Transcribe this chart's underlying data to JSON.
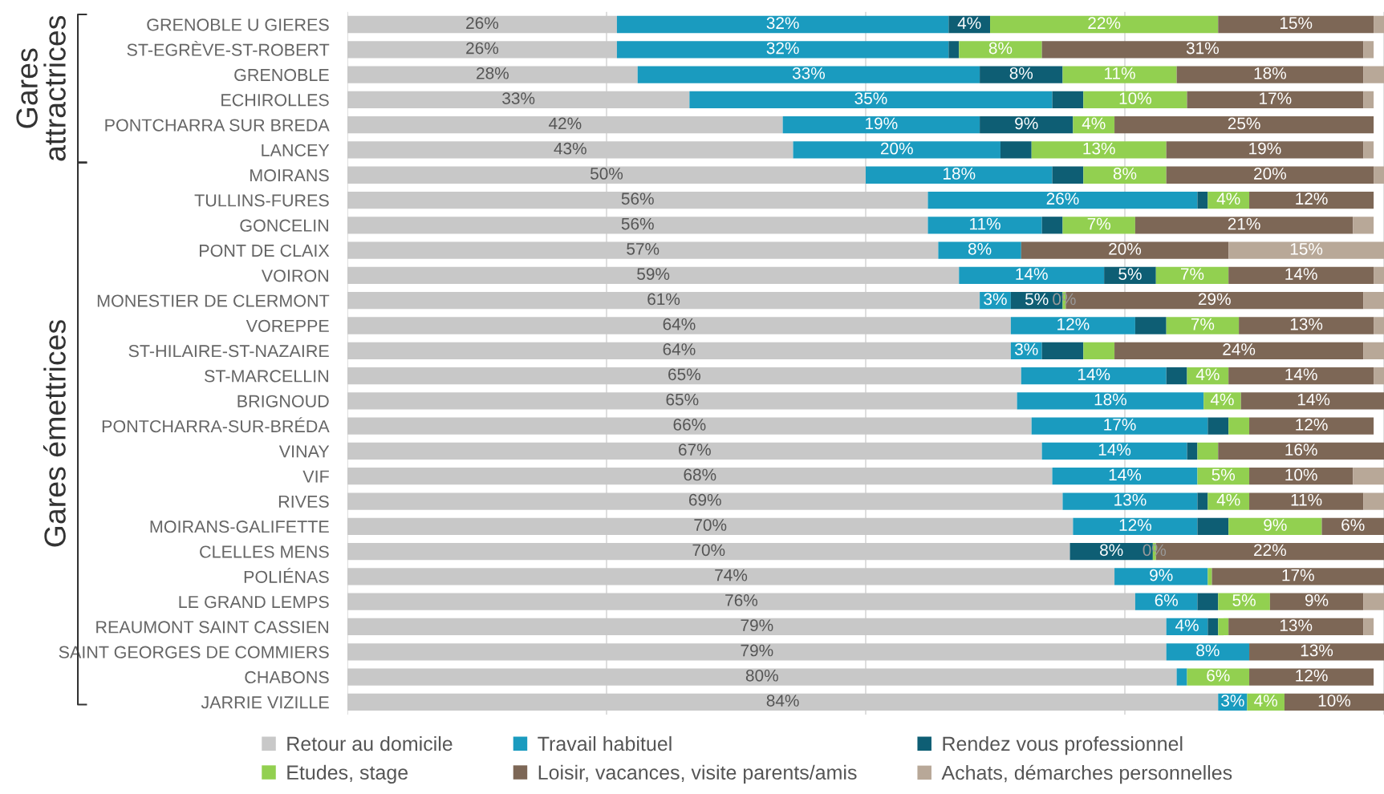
{
  "chart_data": {
    "type": "bar",
    "orientation": "horizontal",
    "stacked": true,
    "categories": [
      "GRENOBLE U GIERES",
      "ST-EGRÈVE-ST-ROBERT",
      "GRENOBLE",
      "ECHIROLLES",
      "PONTCHARRA SUR BREDA",
      "LANCEY",
      "MOIRANS",
      "TULLINS-FURES",
      "GONCELIN",
      "PONT DE CLAIX",
      "VOIRON",
      "MONESTIER DE CLERMONT",
      "VOREPPE",
      "ST-HILAIRE-ST-NAZAIRE",
      "ST-MARCELLIN",
      "BRIGNOUD",
      "PONTCHARRA-SUR-BRÉDA",
      "VINAY",
      "VIF",
      "RIVES",
      "MOIRANS-GALIFETTE",
      "CLELLES MENS",
      "POLIÉNAS",
      "LE GRAND LEMPS",
      "REAUMONT SAINT CASSIEN",
      "SAINT GEORGES DE COMMIERS",
      "CHABONS",
      "JARRIE VIZILLE"
    ],
    "series": [
      {
        "name": "Retour au domicile",
        "color": "#c8c8c8",
        "values": [
          26,
          26,
          28,
          33,
          42,
          43,
          50,
          56,
          56,
          57,
          59,
          61,
          64,
          64,
          65,
          64.6,
          66,
          67,
          68,
          69,
          70,
          69.7,
          74,
          76,
          79,
          79,
          80,
          84
        ],
        "value_labels": [
          "26%",
          "26%",
          "28%",
          "33%",
          "42%",
          "43%",
          "50%",
          "56%",
          "56%",
          "57%",
          "59%",
          "61%",
          "64%",
          "64%",
          "65%",
          "65%",
          "66%",
          "67%",
          "68%",
          "69%",
          "70%",
          "70%",
          "74%",
          "76%",
          "79%",
          "79%",
          "80%",
          "84%"
        ]
      },
      {
        "name": "Travail habituel",
        "color": "#1a9bbf",
        "values": [
          32,
          32,
          33,
          35,
          19,
          20,
          18,
          26,
          11,
          8,
          14,
          3,
          12,
          3,
          14,
          18,
          17,
          14,
          14,
          13,
          12,
          0,
          9,
          6,
          4,
          8,
          1,
          2.8
        ],
        "value_labels": [
          "32%",
          "32%",
          "33%",
          "35%",
          "19%",
          "20%",
          "18%",
          "26%",
          "11%",
          "8%",
          "14%",
          "3%",
          "12%",
          "3%",
          "14%",
          "18%",
          "17%",
          "14%",
          "14%",
          "13%",
          "12%",
          null,
          "9%",
          "6%",
          "4%",
          "8%",
          null,
          "3%"
        ]
      },
      {
        "name": "Rendez vous professionnel",
        "color": "#0e5e74",
        "values": [
          4,
          1,
          8,
          3,
          9,
          3,
          3,
          1,
          2,
          0,
          5,
          5,
          3,
          4,
          2,
          0,
          2,
          1,
          0,
          1,
          3,
          8,
          0,
          2,
          1,
          0,
          0,
          0
        ],
        "value_labels": [
          "4%",
          null,
          "8%",
          null,
          "9%",
          null,
          null,
          null,
          null,
          null,
          "5%",
          "5%",
          null,
          null,
          null,
          null,
          null,
          null,
          null,
          null,
          null,
          "8%",
          null,
          null,
          null,
          null,
          null,
          null
        ]
      },
      {
        "name": "Etudes, stage",
        "color": "#92d050",
        "values": [
          22,
          8,
          11,
          10,
          4,
          13,
          8,
          4,
          7,
          0,
          7,
          0.3,
          7,
          3,
          4,
          3.6,
          2,
          2,
          5,
          4,
          9,
          0.3,
          0.4,
          5,
          1,
          0,
          6,
          3.6
        ],
        "value_labels": [
          "22%",
          "8%",
          "11%",
          "10%",
          "4%",
          "13%",
          "8%",
          "4%",
          "7%",
          null,
          "7%",
          "0%",
          "7%",
          null,
          "4%",
          "4%",
          null,
          null,
          "5%",
          "4%",
          "9%",
          "0%",
          null,
          "5%",
          null,
          null,
          "6%",
          "4%"
        ]
      },
      {
        "name": "Loisir, vacances, visite parents/amis",
        "color": "#7d6756",
        "values": [
          15,
          31,
          18,
          17,
          25,
          19,
          20,
          12,
          21,
          20,
          14,
          28.7,
          13,
          24,
          14,
          14,
          12,
          16,
          10,
          11,
          6,
          22,
          16.6,
          9,
          13,
          13,
          12,
          9.6
        ],
        "value_labels": [
          "15%",
          "31%",
          "18%",
          "17%",
          "25%",
          "19%",
          "20%",
          "12%",
          "21%",
          "20%",
          "14%",
          "29%",
          "13%",
          "24%",
          "14%",
          "14%",
          "12%",
          "16%",
          "10%",
          "11%",
          "6%",
          "22%",
          "17%",
          "9%",
          "13%",
          "13%",
          "12%",
          "10%"
        ]
      },
      {
        "name": "Achats, démarches personnelles",
        "color": "#b8a898",
        "values": [
          1,
          1,
          2,
          1,
          0,
          1,
          1,
          0,
          2,
          15,
          1,
          2,
          1,
          2,
          1,
          0,
          0,
          0,
          3,
          2,
          0,
          0,
          0,
          2,
          1,
          0,
          0,
          0
        ],
        "value_labels": [
          null,
          null,
          null,
          null,
          null,
          null,
          null,
          null,
          null,
          "15%",
          null,
          null,
          null,
          null,
          null,
          null,
          null,
          null,
          null,
          null,
          null,
          null,
          null,
          null,
          null,
          null,
          null,
          null
        ]
      }
    ],
    "xlim": [
      0,
      100
    ],
    "xticks": [
      {
        "value": 0,
        "label": null
      },
      {
        "value": 25,
        "label": null
      },
      {
        "value": 50,
        "label": null
      },
      {
        "value": 75,
        "label": null
      },
      {
        "value": 100,
        "label": null
      }
    ],
    "tick_labels": "y",
    "grid": "x",
    "legend": "bottom",
    "annotations": [
      "Gares attractrices",
      "Gares émettrices"
    ]
  }
}
